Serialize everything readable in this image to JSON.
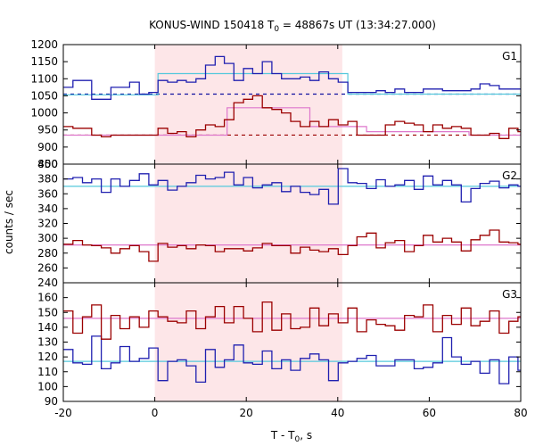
{
  "chart_data": {
    "type": "line",
    "title_pre": "KONUS-WIND 150418 T",
    "title_sub": "0",
    "title_post": " = 48867s UT (13:34:27.000)",
    "xlabel_pre": "T - T",
    "xlabel_sub": "0",
    "xlabel_post": ", s",
    "ylabel": "counts / sec",
    "xlim": [
      -20,
      80
    ],
    "xticks": [
      -20,
      0,
      20,
      40,
      60,
      80
    ],
    "shaded_region": [
      0,
      41
    ],
    "step_x": [
      -20,
      -17.9,
      -15.8,
      -13.8,
      -11.7,
      -9.6,
      -7.6,
      -5.5,
      -3.4,
      -1.3,
      0.7,
      2.8,
      4.9,
      6.9,
      9,
      11.1,
      13.2,
      15.2,
      17.3,
      19.4,
      21.4,
      23.5,
      25.6,
      27.7,
      29.7,
      31.8,
      33.9,
      35.9,
      38,
      40.1,
      42.2,
      44.2,
      46.3,
      48.4,
      50.4,
      52.5,
      54.6,
      56.7,
      58.7,
      60.8,
      62.9,
      64.9,
      67,
      69.1,
      71.1,
      73.2,
      75.3,
      77.4,
      79.4,
      80
    ],
    "panels": [
      {
        "label": "G1",
        "ylim": [
          850,
          1200
        ],
        "yticks": [
          850,
          900,
          950,
          1000,
          1050,
          1100,
          1150,
          1200
        ],
        "series": [
          {
            "color": "#2020b0",
            "values": [
              1075,
              1095,
              1095,
              1040,
              1040,
              1075,
              1075,
              1090,
              1055,
              1060,
              1095,
              1090,
              1095,
              1090,
              1100,
              1140,
              1165,
              1145,
              1095,
              1130,
              1115,
              1150,
              1115,
              1100,
              1100,
              1105,
              1095,
              1120,
              1100,
              1090,
              1060,
              1060,
              1060,
              1065,
              1060,
              1070,
              1060,
              1060,
              1070,
              1070,
              1065,
              1065,
              1065,
              1070,
              1085,
              1080,
              1070,
              1070,
              1070
            ]
          },
          {
            "color": "#9b0000",
            "values": [
              960,
              955,
              955,
              935,
              930,
              935,
              935,
              935,
              935,
              935,
              955,
              940,
              945,
              930,
              950,
              965,
              960,
              980,
              1030,
              1040,
              1050,
              1015,
              1010,
              1000,
              975,
              960,
              975,
              960,
              980,
              965,
              975,
              935,
              935,
              935,
              965,
              975,
              970,
              965,
              945,
              965,
              955,
              960,
              955,
              935,
              935,
              940,
              925,
              955,
              945
            ]
          }
        ],
        "backgrounds": [
          {
            "color": "#1010a0",
            "level": 1055,
            "x": [
              -20,
              80
            ],
            "style": "dashed"
          },
          {
            "color": "#9b0000",
            "level": 935,
            "x": [
              -20,
              80
            ],
            "style": "dashed"
          }
        ],
        "fit_steps": [
          {
            "color": "#55c8dc",
            "x": [
              -20,
              0.7,
              0.7,
              42.2,
              42.2,
              80
            ],
            "y": [
              1053,
              1053,
              1115,
              1115,
              1055,
              1055
            ]
          },
          {
            "color": "#dd77cc",
            "x": [
              -20,
              15.8,
              15.8,
              33.9,
              33.9,
              46.3,
              46.3,
              68.7,
              68.7,
              80
            ],
            "y": [
              935,
              935,
              1015,
              1015,
              960,
              960,
              945,
              945,
              935,
              935
            ]
          }
        ]
      },
      {
        "label": "G2",
        "ylim": [
          240,
          400
        ],
        "yticks": [
          240,
          260,
          280,
          300,
          320,
          340,
          360,
          380,
          400
        ],
        "series": [
          {
            "color": "#2020b0",
            "values": [
              380,
              382,
              375,
              380,
              362,
              380,
              370,
              378,
              387,
              372,
              378,
              365,
              370,
              375,
              385,
              380,
              382,
              389,
              372,
              382,
              368,
              372,
              375,
              363,
              370,
              362,
              359,
              366,
              346,
              394,
              375,
              374,
              367,
              379,
              370,
              372,
              378,
              366,
              384,
              372,
              378,
              372,
              349,
              367,
              374,
              377,
              368,
              372,
              370
            ]
          },
          {
            "color": "#9b0000",
            "values": [
              292,
              297,
              291,
              290,
              287,
              280,
              286,
              290,
              282,
              269,
              293,
              288,
              290,
              286,
              291,
              290,
              282,
              286,
              286,
              283,
              287,
              293,
              290,
              290,
              280,
              288,
              284,
              282,
              286,
              278,
              290,
              302,
              307,
              287,
              294,
              297,
              282,
              290,
              304,
              295,
              300,
              295,
              283,
              298,
              304,
              311,
              295,
              294,
              292
            ]
          }
        ],
        "fit_steps": [
          {
            "color": "#55c8dc",
            "x": [
              -20,
              80
            ],
            "y": [
              370,
              370
            ]
          },
          {
            "color": "#dd77cc",
            "x": [
              -20,
              80
            ],
            "y": [
              291,
              291
            ]
          }
        ]
      },
      {
        "label": "G3",
        "ylim": [
          90,
          170
        ],
        "yticks": [
          90,
          100,
          110,
          120,
          130,
          140,
          150,
          160
        ],
        "series": [
          {
            "color": "#2020b0",
            "values": [
              125,
              116,
              115,
              134,
              112,
              116,
              127,
              117,
              119,
              126,
              104,
              117,
              118,
              114,
              103,
              125,
              113,
              118,
              128,
              116,
              115,
              124,
              112,
              118,
              111,
              119,
              122,
              118,
              104,
              116,
              117,
              119,
              121,
              114,
              114,
              118,
              118,
              112,
              113,
              116,
              133,
              120,
              115,
              117,
              109,
              118,
              102,
              120,
              111
            ]
          },
          {
            "color": "#9b0000",
            "values": [
              151,
              136,
              147,
              155,
              132,
              148,
              139,
              147,
              140,
              151,
              147,
              144,
              143,
              151,
              139,
              147,
              154,
              143,
              154,
              146,
              137,
              157,
              138,
              149,
              139,
              140,
              153,
              141,
              149,
              143,
              153,
              137,
              145,
              142,
              141,
              138,
              148,
              147,
              155,
              137,
              148,
              142,
              153,
              141,
              144,
              151,
              136,
              144,
              147
            ]
          }
        ],
        "fit_steps": [
          {
            "color": "#55c8dc",
            "x": [
              -20,
              80
            ],
            "y": [
              117,
              117
            ]
          },
          {
            "color": "#dd77cc",
            "x": [
              -20,
              80
            ],
            "y": [
              146,
              146
            ]
          }
        ]
      }
    ]
  }
}
